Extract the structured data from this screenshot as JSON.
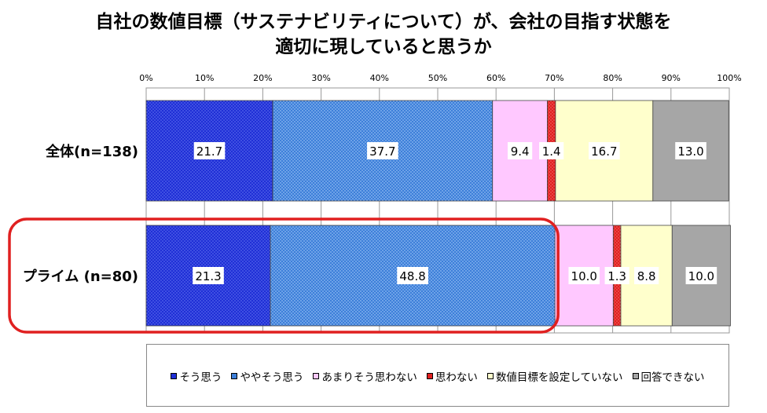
{
  "title": {
    "line1": "自社の数値目標（サステナビリティについて）が、会社の目指す状態を",
    "line2": "適切に現していると思うか"
  },
  "chart_data": {
    "type": "bar",
    "orientation": "horizontal-stacked-100",
    "title": "自社の数値目標（サステナビリティについて）が、会社の目指す状態を適切に現していると思うか",
    "categories": [
      "全体(n=138)",
      "プライム (n=80)"
    ],
    "x_ticks": [
      "0%",
      "10%",
      "20%",
      "30%",
      "40%",
      "50%",
      "60%",
      "70%",
      "80%",
      "90%",
      "100%"
    ],
    "xlim": [
      0,
      100
    ],
    "grid": true,
    "legend_position": "bottom",
    "highlight": {
      "category_index": 1,
      "series_range": [
        0,
        1
      ],
      "color": "#e02020"
    },
    "series": [
      {
        "name": "そう思う",
        "values": [
          21.7,
          21.3
        ],
        "color": "#1f2fd6"
      },
      {
        "name": "ややそう思う",
        "values": [
          37.7,
          48.8
        ],
        "color": "#3d7fd9"
      },
      {
        "name": "あまりそう思わない",
        "values": [
          9.4,
          10.0
        ],
        "color": "#ffc8ff"
      },
      {
        "name": "思わない",
        "values": [
          1.4,
          1.3
        ],
        "color": "#e02020"
      },
      {
        "name": "数値目標を設定していない",
        "values": [
          16.7,
          8.8
        ],
        "color": "#ffffcc"
      },
      {
        "name": "回答できない",
        "values": [
          13.0,
          10.0
        ],
        "color": "#a6a6a6"
      }
    ]
  }
}
